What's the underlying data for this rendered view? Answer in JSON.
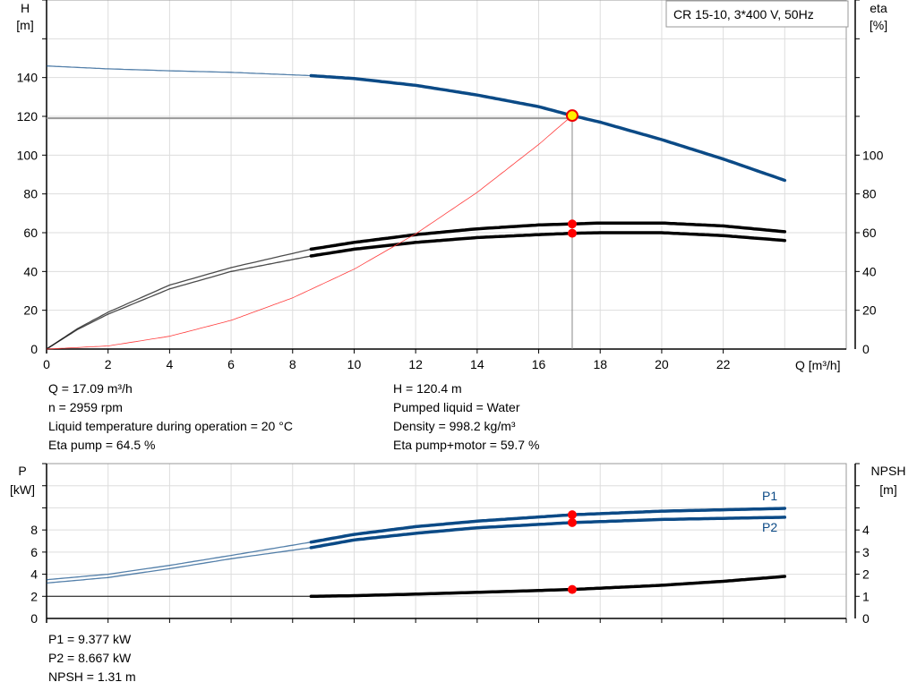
{
  "chart_data": [
    {
      "type": "line",
      "title": "CR 15-10, 3*400 V, 50Hz",
      "xlabel": "Q [m³/h]",
      "ylabel": "H [m]",
      "y2label": "eta [%]",
      "xlim": [
        0,
        26
      ],
      "ylim": [
        0,
        180
      ],
      "y2lim": [
        0,
        180
      ],
      "grid": true,
      "xticks": [
        0,
        2,
        4,
        6,
        8,
        10,
        12,
        14,
        16,
        18,
        20,
        22
      ],
      "yticks": [
        0,
        20,
        40,
        60,
        80,
        100,
        120,
        140
      ],
      "y2ticks": [
        0,
        20,
        40,
        60,
        80,
        100
      ],
      "series": [
        {
          "key": "H",
          "axis": "left",
          "color": "#0b4a86",
          "thick_from": 8.6,
          "x": [
            0,
            2,
            4,
            6,
            8.6,
            10,
            12,
            14,
            16,
            17.09,
            18,
            20,
            22,
            24
          ],
          "y": [
            146,
            144.5,
            143.5,
            142.7,
            141,
            139.5,
            136,
            131,
            125,
            120.4,
            117,
            108,
            98,
            87
          ]
        },
        {
          "key": "eta_pump",
          "axis": "right",
          "color": "#000000",
          "thick_from": 8.6,
          "x": [
            0,
            1,
            2,
            4,
            6,
            8.6,
            10,
            12,
            14,
            16,
            17.09,
            18,
            20,
            22,
            24
          ],
          "y": [
            0,
            10.5,
            19,
            33,
            42,
            51.5,
            55,
            59,
            62,
            64,
            64.5,
            65,
            65,
            63.5,
            60.5
          ]
        },
        {
          "key": "eta_pump_motor",
          "axis": "right",
          "color": "#000000",
          "thick_from": 8.6,
          "x": [
            0,
            1,
            2,
            4,
            6,
            8.6,
            10,
            12,
            14,
            16,
            17.09,
            18,
            20,
            22,
            24
          ],
          "y": [
            0,
            10,
            18,
            31,
            40,
            48,
            51.5,
            55,
            57.5,
            59,
            59.7,
            60,
            60,
            58.5,
            56
          ]
        },
        {
          "key": "system_curve",
          "axis": "left",
          "color": "#ff3b3b",
          "thin": true,
          "x": [
            0,
            2,
            4,
            6,
            8,
            10,
            12,
            14,
            16,
            17.09
          ],
          "y": [
            0,
            1.6,
            6.6,
            14.8,
            26.4,
            41.2,
            59.4,
            80.8,
            105.5,
            120.4
          ]
        }
      ],
      "duty_point": {
        "Q": 17.09,
        "H": 120.4,
        "eta_pump": 64.5,
        "eta_pump_motor": 59.7
      }
    },
    {
      "type": "line",
      "xlim": [
        0,
        26
      ],
      "ylim": [
        0,
        14
      ],
      "y2lim": [
        0,
        7
      ],
      "grid": true,
      "ylabel": "P [kW]",
      "y2label": "NPSH [m]",
      "yticks": [
        0,
        2,
        4,
        6,
        8
      ],
      "y2ticks": [
        0,
        1,
        2,
        3,
        4
      ],
      "series": [
        {
          "name": "P1",
          "axis": "left",
          "color": "#0b4a86",
          "thick_from": 8.6,
          "x": [
            0,
            2,
            4,
            6,
            8.6,
            10,
            12,
            14,
            17.09,
            20,
            24
          ],
          "y": [
            3.5,
            4,
            4.8,
            5.7,
            6.9,
            7.6,
            8.3,
            8.8,
            9.377,
            9.7,
            9.95
          ]
        },
        {
          "name": "P2",
          "axis": "left",
          "color": "#0b4a86",
          "thick_from": 8.6,
          "x": [
            0,
            2,
            4,
            6,
            8.6,
            10,
            12,
            14,
            17.09,
            20,
            24
          ],
          "y": [
            3.2,
            3.7,
            4.5,
            5.4,
            6.4,
            7.1,
            7.7,
            8.2,
            8.667,
            8.95,
            9.15
          ]
        },
        {
          "key": "NPSH",
          "axis": "right",
          "color": "#000000",
          "thick_from": 8.6,
          "x": [
            0,
            8.6,
            10,
            12,
            14,
            17.09,
            20,
            22,
            24
          ],
          "y": [
            1,
            1,
            1.03,
            1.1,
            1.18,
            1.31,
            1.5,
            1.68,
            1.9
          ]
        }
      ],
      "duty_point": {
        "Q": 17.09,
        "P1": 9.377,
        "P2": 8.667,
        "NPSH": 1.31
      }
    }
  ],
  "info_top_left": [
    "Q = 17.09 m³/h",
    "n = 2959 rpm",
    "Liquid temperature during operation = 20 °C",
    "Eta pump = 64.5 %"
  ],
  "info_top_right": [
    "H = 120.4 m",
    "Pumped liquid = Water",
    "Density = 998.2 kg/m³",
    "Eta pump+motor = 59.7 %"
  ],
  "info_bottom": [
    "P1 = 9.377 kW",
    "P2 = 8.667 kW",
    "NPSH = 1.31 m"
  ],
  "labels": {
    "H": "H",
    "Hunit": "[m]",
    "eta": "eta",
    "etaunit": "[%]",
    "Q": "Q [m³/h]",
    "P": "P",
    "Punit": "[kW]",
    "NPSH": "NPSH",
    "NPSHunit": "[m]"
  }
}
